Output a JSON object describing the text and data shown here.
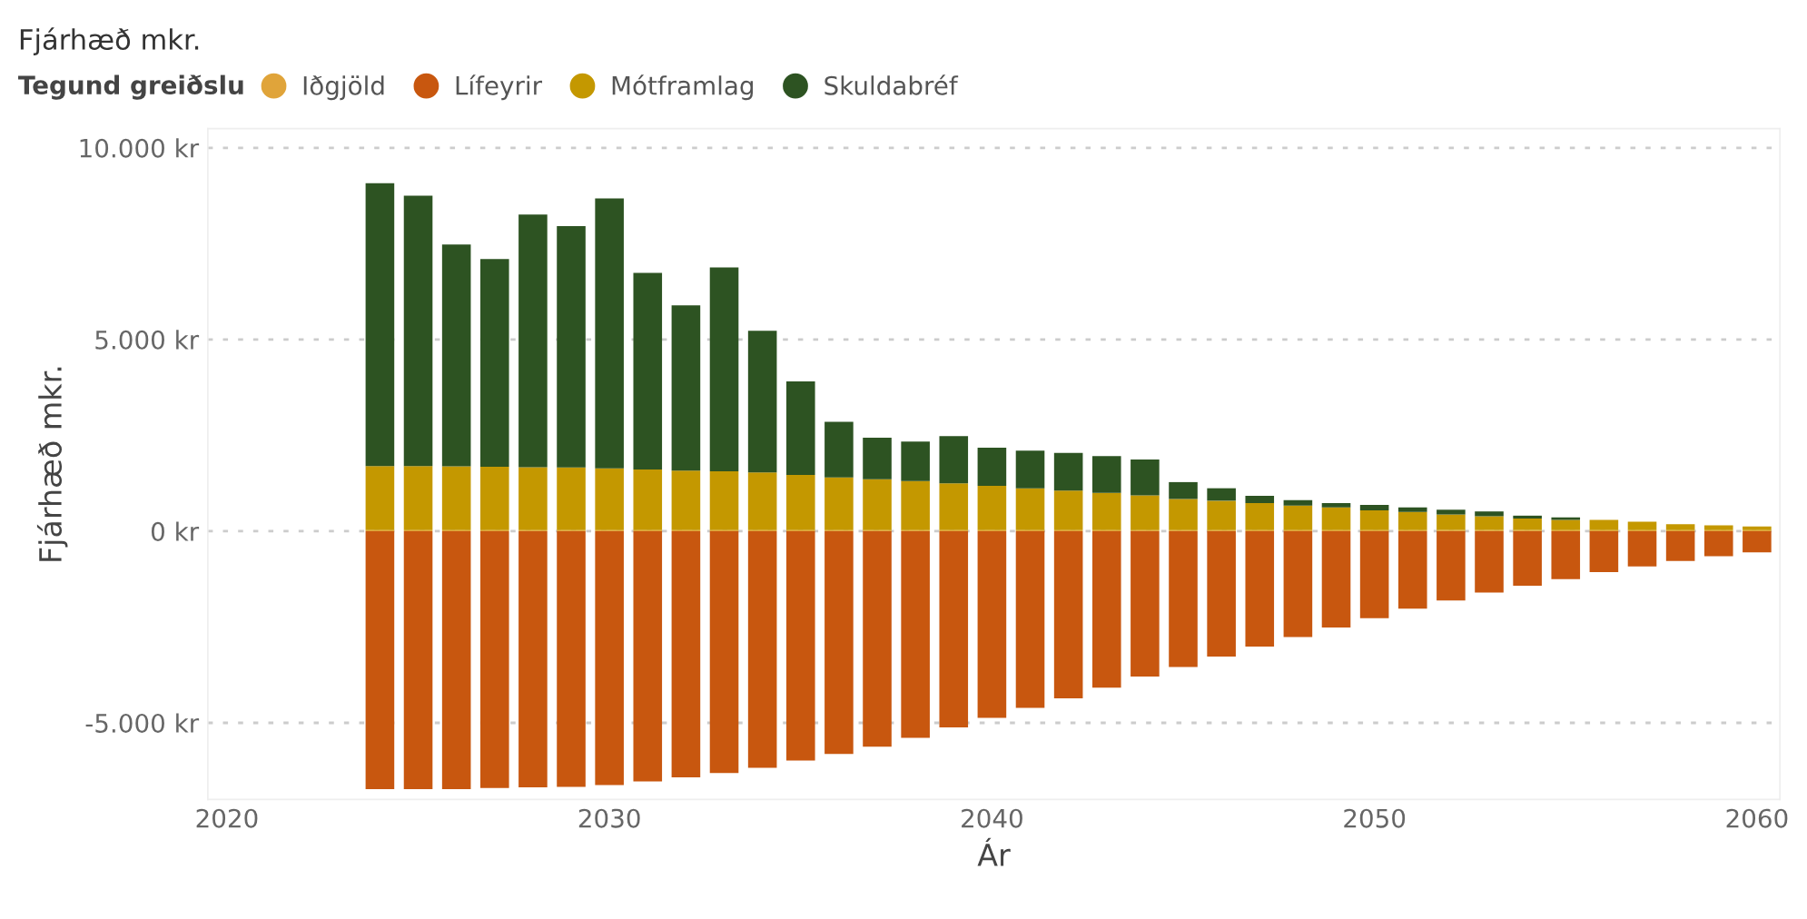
{
  "chart_data": {
    "type": "bar",
    "stacked": true,
    "title": "Fjárhæð mkr.",
    "xlabel": "Ár",
    "ylabel": "Fjárhæð mkr.",
    "legend_title": "Tegund greiðslu",
    "legend": "top left",
    "grid": "y",
    "x": [
      2024,
      2025,
      2026,
      2027,
      2028,
      2029,
      2030,
      2031,
      2032,
      2033,
      2034,
      2035,
      2036,
      2037,
      2038,
      2039,
      2040,
      2041,
      2042,
      2043,
      2044,
      2045,
      2046,
      2047,
      2048,
      2049,
      2050,
      2051,
      2052,
      2053,
      2054,
      2055,
      2056,
      2057,
      2058,
      2059,
      2060
    ],
    "xlim": [
      2019.5,
      2060.6
    ],
    "xticks": [
      2020,
      2030,
      2040,
      2050,
      2060
    ],
    "ylim": [
      -7000,
      10500
    ],
    "yticks": [
      {
        "value": -5000,
        "label": "-5.000 kr"
      },
      {
        "value": 0,
        "label": "0 kr"
      },
      {
        "value": 5000,
        "label": "5.000 kr"
      },
      {
        "value": 10000,
        "label": "10.000 kr"
      }
    ],
    "series": [
      {
        "name": "Iðgjöld",
        "color": "#e0a43a",
        "values": [
          30,
          30,
          30,
          30,
          30,
          30,
          30,
          30,
          30,
          30,
          30,
          30,
          30,
          30,
          30,
          30,
          30,
          30,
          30,
          30,
          30,
          30,
          30,
          30,
          30,
          30,
          30,
          30,
          30,
          30,
          30,
          30,
          30,
          30,
          30,
          30,
          30
        ]
      },
      {
        "name": "Lífeyrir",
        "color": "#c8570f",
        "values": [
          -6730,
          -6730,
          -6730,
          -6700,
          -6680,
          -6670,
          -6620,
          -6530,
          -6420,
          -6310,
          -6170,
          -5980,
          -5810,
          -5620,
          -5390,
          -5120,
          -4870,
          -4610,
          -4360,
          -4080,
          -3790,
          -3540,
          -3270,
          -3010,
          -2760,
          -2510,
          -2270,
          -2020,
          -1810,
          -1600,
          -1420,
          -1250,
          -1070,
          -920,
          -780,
          -650,
          -550
        ]
      },
      {
        "name": "Mótframlag",
        "color": "#c49800",
        "values": [
          1670,
          1670,
          1660,
          1650,
          1640,
          1630,
          1610,
          1580,
          1550,
          1530,
          1500,
          1440,
          1370,
          1325,
          1280,
          1220,
          1150,
          1090,
          1030,
          970,
          905,
          810,
          765,
          705,
          640,
          590,
          515,
          470,
          405,
          360,
          300,
          265,
          265,
          220,
          155,
          125,
          95
        ]
      },
      {
        "name": "Skuldabréf",
        "color": "#2d5322",
        "values": [
          7380,
          7050,
          5790,
          5420,
          6590,
          6300,
          7040,
          5130,
          4310,
          5320,
          3700,
          2440,
          1450,
          1085,
          1030,
          1230,
          1000,
          980,
          980,
          960,
          935,
          440,
          325,
          185,
          140,
          115,
          140,
          120,
          125,
          125,
          75,
          65,
          null,
          null,
          null,
          null,
          null
        ]
      }
    ]
  }
}
